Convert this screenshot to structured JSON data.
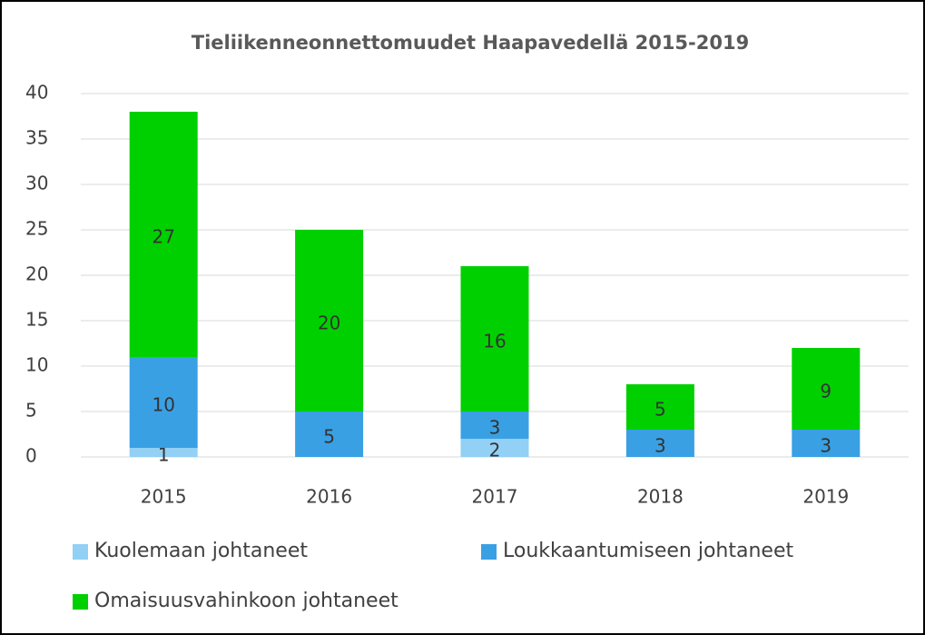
{
  "chart_data": {
    "type": "stacked_bar",
    "title": "Tieliikenneonnettomuudet Haapavedellä 2015-2019",
    "categories": [
      "2015",
      "2016",
      "2017",
      "2018",
      "2019"
    ],
    "series": [
      {
        "name": "Kuolemaan johtaneet",
        "color": "#92d0f5",
        "values": [
          1,
          0,
          2,
          0,
          0
        ]
      },
      {
        "name": "Loukkaantumiseen johtaneet",
        "color": "#3aa0e4",
        "values": [
          10,
          5,
          3,
          3,
          3
        ]
      },
      {
        "name": "Omaisuusvahinkoon johtaneet",
        "color": "#00d000",
        "values": [
          27,
          20,
          16,
          5,
          9
        ]
      }
    ],
    "ylim": [
      0,
      40
    ],
    "yticks": [
      0,
      5,
      10,
      15,
      20,
      25,
      30,
      35,
      40
    ],
    "grid": true,
    "legend": "bottom"
  }
}
